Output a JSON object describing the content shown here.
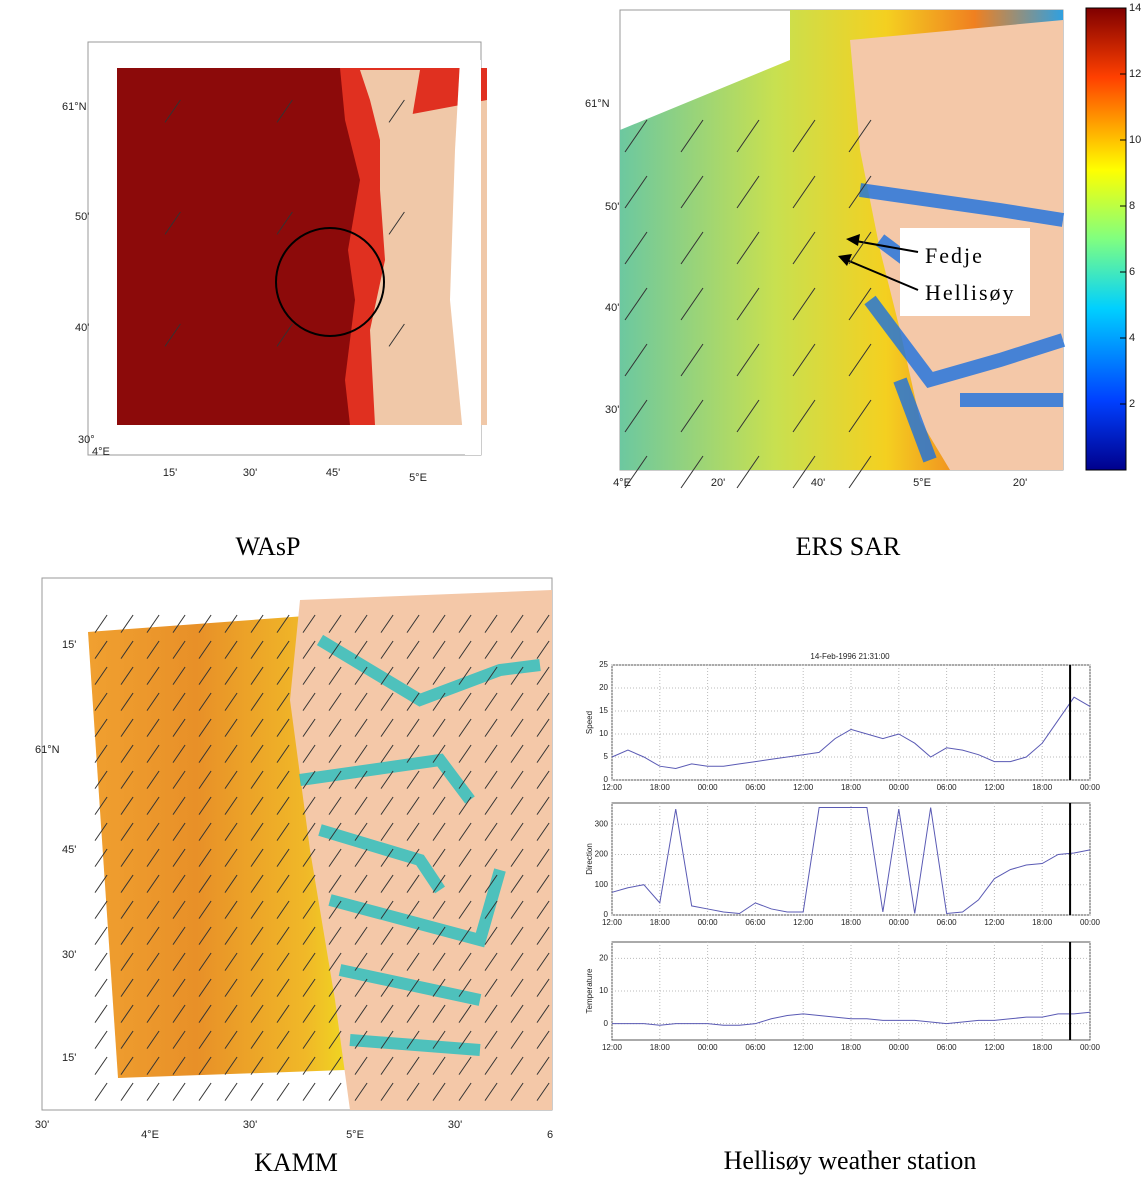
{
  "panels": {
    "wasp": {
      "caption": "WAsP",
      "lat_labels": [
        "61°N",
        "50'",
        "40'",
        "30°",
        "4°E"
      ],
      "lon_labels": [
        "15'",
        "30'",
        "45'",
        "5°E"
      ]
    },
    "ers_sar": {
      "caption": "ERS SAR",
      "lat_labels": [
        "61°N",
        "50'",
        "40'",
        "30'"
      ],
      "lon_labels": [
        "4°E",
        "20'",
        "40'",
        "5°E",
        "20'"
      ],
      "colorbar": {
        "range": [
          0,
          14
        ],
        "ticks": [
          2,
          4,
          6,
          8,
          10,
          12,
          14
        ]
      },
      "annotations": [
        "Fedje",
        "Hellisøy"
      ]
    },
    "kamm": {
      "caption": "KAMM",
      "lat_labels": [
        "15'",
        "61°N",
        "45'",
        "30'",
        "15'"
      ],
      "lon_labels": [
        "30'",
        "4°E",
        "30'",
        "5°E",
        "30'",
        "6"
      ]
    },
    "station": {
      "caption": "Hellisøy weather station",
      "title": "14-Feb-1996 21:31:00"
    }
  },
  "chart_data": [
    {
      "type": "line",
      "y_label": "Speed",
      "color": "#5a5ab4",
      "grid": true,
      "vline": 57.5,
      "x": [
        0,
        2,
        4,
        6,
        8,
        10,
        12,
        14,
        16,
        18,
        20,
        22,
        24,
        26,
        28,
        30,
        32,
        34,
        36,
        38,
        40,
        42,
        44,
        46,
        48,
        50,
        52,
        54,
        56,
        58,
        60
      ],
      "values": [
        5,
        6.5,
        5,
        3,
        2.5,
        3.5,
        3,
        3,
        3.5,
        4,
        4.5,
        5,
        5.5,
        6,
        9,
        11,
        10,
        9,
        10,
        8,
        5,
        7,
        6.5,
        5.5,
        4,
        4,
        5,
        8,
        13,
        18,
        16
      ],
      "xlim": [
        0,
        60
      ],
      "ylim": [
        0,
        25
      ],
      "yticks": [
        0,
        5,
        10,
        15,
        20,
        25
      ],
      "xticks": [
        {
          "value": 0,
          "label": "12:00"
        },
        {
          "value": 6,
          "label": "18:00"
        },
        {
          "value": 12,
          "label": "00:00"
        },
        {
          "value": 18,
          "label": "06:00"
        },
        {
          "value": 24,
          "label": "12:00"
        },
        {
          "value": 30,
          "label": "18:00"
        },
        {
          "value": 36,
          "label": "00:00"
        },
        {
          "value": 42,
          "label": "06:00"
        },
        {
          "value": 48,
          "label": "12:00"
        },
        {
          "value": 54,
          "label": "18:00"
        },
        {
          "value": 60,
          "label": "00:00"
        }
      ]
    },
    {
      "type": "line",
      "y_label": "Direction",
      "color": "#5a5ab4",
      "grid": true,
      "vline": 57.5,
      "x": [
        0,
        2,
        4,
        6,
        8,
        10,
        12,
        14,
        16,
        18,
        20,
        22,
        24,
        26,
        28,
        30,
        32,
        34,
        36,
        38,
        40,
        42,
        44,
        46,
        48,
        50,
        52,
        54,
        56,
        58,
        60
      ],
      "values": [
        75,
        90,
        100,
        40,
        350,
        30,
        20,
        10,
        5,
        40,
        20,
        10,
        10,
        355,
        355,
        355,
        355,
        10,
        350,
        5,
        355,
        5,
        10,
        50,
        120,
        150,
        165,
        170,
        200,
        205,
        215
      ],
      "xlim": [
        0,
        60
      ],
      "ylim": [
        0,
        370
      ],
      "yticks": [
        0,
        100,
        200,
        300
      ],
      "xticks": [
        {
          "value": 0,
          "label": "12:00"
        },
        {
          "value": 6,
          "label": "18:00"
        },
        {
          "value": 12,
          "label": "00:00"
        },
        {
          "value": 18,
          "label": "06:00"
        },
        {
          "value": 24,
          "label": "12:00"
        },
        {
          "value": 30,
          "label": "18:00"
        },
        {
          "value": 36,
          "label": "00:00"
        },
        {
          "value": 42,
          "label": "06:00"
        },
        {
          "value": 48,
          "label": "12:00"
        },
        {
          "value": 54,
          "label": "18:00"
        },
        {
          "value": 60,
          "label": "00:00"
        }
      ]
    },
    {
      "type": "line",
      "y_label": "Temperature",
      "color": "#5a5ab4",
      "grid": true,
      "vline": 57.5,
      "x": [
        0,
        2,
        4,
        6,
        8,
        10,
        12,
        14,
        16,
        18,
        20,
        22,
        24,
        26,
        28,
        30,
        32,
        34,
        36,
        38,
        40,
        42,
        44,
        46,
        48,
        50,
        52,
        54,
        56,
        58,
        60
      ],
      "values": [
        0,
        0,
        0,
        -0.5,
        0,
        0,
        0,
        -0.5,
        -0.5,
        0,
        1.5,
        2.5,
        3,
        2.5,
        2,
        1.5,
        1.5,
        1,
        1,
        1,
        0.5,
        0,
        0.5,
        1,
        1,
        1.5,
        2,
        2,
        3,
        3,
        3.5
      ],
      "xlim": [
        0,
        60
      ],
      "ylim": [
        -5,
        25
      ],
      "yticks": [
        0,
        10,
        20
      ],
      "xticks": [
        {
          "value": 0,
          "label": "12:00"
        },
        {
          "value": 6,
          "label": "18:00"
        },
        {
          "value": 12,
          "label": "00:00"
        },
        {
          "value": 18,
          "label": "06:00"
        },
        {
          "value": 24,
          "label": "12:00"
        },
        {
          "value": 30,
          "label": "18:00"
        },
        {
          "value": 36,
          "label": "00:00"
        },
        {
          "value": 42,
          "label": "06:00"
        },
        {
          "value": 48,
          "label": "12:00"
        },
        {
          "value": 54,
          "label": "18:00"
        },
        {
          "value": 60,
          "label": "00:00"
        }
      ]
    }
  ]
}
